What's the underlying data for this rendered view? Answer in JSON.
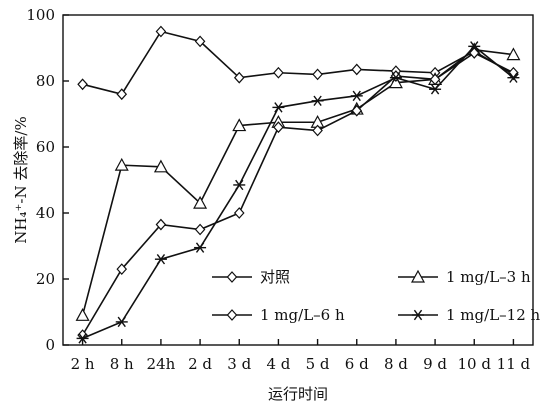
{
  "chart_data": {
    "type": "line",
    "xlabel": "运行时间",
    "ylabel": "NH₄⁺-N 去除率/%",
    "ylim": [
      0,
      100
    ],
    "yticks": [
      0,
      20,
      40,
      60,
      80,
      100
    ],
    "categories": [
      "2 h",
      "8 h",
      "24h",
      "2 d",
      "3 d",
      "4 d",
      "5 d",
      "6 d",
      "8 d",
      "9 d",
      "10 d",
      "11 d"
    ],
    "grid": false,
    "legend_position": "bottom-right, inside plot",
    "series": [
      {
        "name": "对照",
        "marker": "diamond",
        "values": [
          79,
          76,
          95,
          92,
          81,
          82.5,
          82,
          83.5,
          83,
          82.5,
          89,
          82
        ]
      },
      {
        "name": "1 mg/L–3 h",
        "marker": "triangle",
        "values": [
          9,
          54.5,
          54,
          43,
          66.5,
          67.5,
          67.5,
          71.5,
          79.5,
          80.5,
          89.5,
          88
        ]
      },
      {
        "name": "1 mg/L–6 h",
        "marker": "diamond",
        "values": [
          3,
          23,
          36.5,
          35,
          40,
          66,
          65,
          71,
          81.5,
          80.5,
          88.5,
          82.5
        ]
      },
      {
        "name": "1 mg/L–12 h",
        "marker": "asterisk",
        "values": [
          2,
          7,
          26,
          29.5,
          48.5,
          72,
          74,
          75.5,
          81,
          77.5,
          90.5,
          81
        ]
      }
    ]
  }
}
